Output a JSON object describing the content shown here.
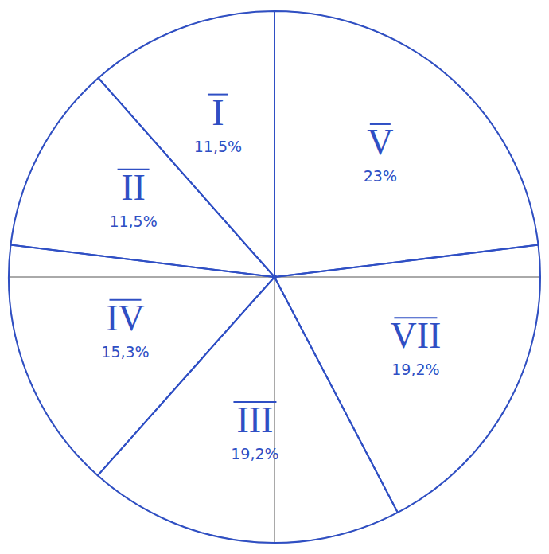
{
  "chart_data": {
    "type": "pie",
    "categories": [
      "V",
      "VII",
      "III",
      "IV",
      "II",
      "I"
    ],
    "values": [
      23,
      19.2,
      19.2,
      15.3,
      11.5,
      11.5
    ],
    "value_labels": [
      "23%",
      "19,2%",
      "19,2%",
      "15,3%",
      "11,5%",
      "11,5%"
    ],
    "color": "#ffffff",
    "data_labels": true
  }
}
